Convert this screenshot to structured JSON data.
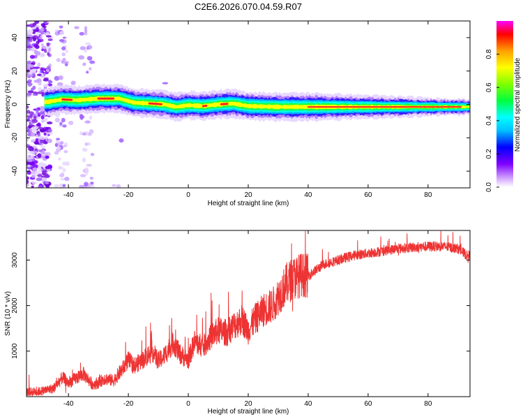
{
  "chart_data": [
    {
      "type": "heatmap",
      "title": "C2E6.2026.070.04.59.R07",
      "xlabel": "Height of straight line (km)",
      "ylabel": "Frequency (Hz)",
      "xlim": [
        -54,
        94
      ],
      "ylim": [
        -50,
        50
      ],
      "xticks": [
        -40,
        -20,
        0,
        20,
        40,
        60,
        80
      ],
      "yticks": [
        -40,
        -20,
        0,
        20,
        40
      ],
      "grid": false,
      "colorbar": {
        "label": "Normalized spectral amplitude",
        "range": [
          0,
          1
        ],
        "ticks": [
          "0.0",
          "0.2",
          "0.4",
          "0.6",
          "0.8"
        ],
        "colormap": [
          "#ffffff",
          "#cc99ff",
          "#7f00ff",
          "#0000ff",
          "#00c0ff",
          "#00ffff",
          "#00ff40",
          "#80ff00",
          "#ffff00",
          "#ffa000",
          "#ff0000",
          "#ff00ff"
        ]
      },
      "ridge": {
        "description_points_x": [
          -47,
          -42,
          -37,
          -30,
          -23,
          -18,
          -12,
          -8,
          -4,
          0,
          5,
          10,
          15,
          20,
          30,
          40,
          50,
          60,
          70,
          80,
          93
        ],
        "description_points_y": [
          1.5,
          3,
          2.5,
          3.5,
          3.5,
          1,
          0.5,
          0,
          -1.5,
          -0.5,
          -1,
          0,
          0.5,
          -1,
          -1.5,
          -1.5,
          -1.5,
          -1.5,
          -1.5,
          -1.5,
          -1.5
        ]
      }
    },
    {
      "type": "line",
      "xlabel": "Height of straight line (km)",
      "ylabel": "SNR (10 * v/v)",
      "xlim": [
        -54,
        94
      ],
      "ylim": [
        0,
        3650
      ],
      "xticks": [
        -40,
        -20,
        0,
        20,
        40,
        60,
        80
      ],
      "yticks": [
        1000,
        2000,
        3000
      ],
      "grid": false,
      "color": "#ee3333",
      "series": [
        {
          "x": [
            -54,
            -50,
            -45,
            -42,
            -40,
            -38,
            -35,
            -32,
            -30,
            -28,
            -25,
            -22,
            -20,
            -18,
            -15,
            -12,
            -10,
            -8,
            -5,
            -3,
            0,
            2,
            5,
            8,
            10,
            13,
            15,
            18,
            20,
            22,
            25,
            28,
            30,
            33,
            35,
            38,
            40,
            45,
            50,
            55,
            60,
            65,
            70,
            75,
            80,
            85,
            90,
            93
          ],
          "values": [
            100,
            110,
            180,
            420,
            300,
            380,
            500,
            270,
            300,
            400,
            350,
            600,
            800,
            680,
            820,
            1000,
            780,
            900,
            1200,
            950,
            800,
            1200,
            1100,
            1350,
            1450,
            1400,
            1550,
            1700,
            1450,
            1680,
            1900,
            2000,
            2200,
            2500,
            2600,
            2680,
            2650,
            2900,
            3000,
            3100,
            3150,
            3200,
            3250,
            3280,
            3300,
            3300,
            3250,
            3100
          ]
        }
      ]
    }
  ]
}
